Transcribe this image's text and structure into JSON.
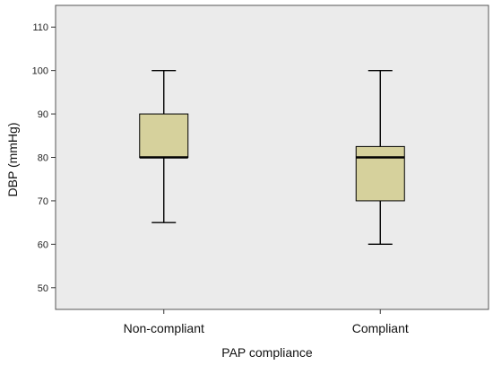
{
  "chart_data": {
    "type": "boxplot",
    "title": "",
    "xlabel": "PAP compliance",
    "ylabel": "DBP (mmHg)",
    "ylim": [
      45,
      115
    ],
    "yticks": [
      50,
      60,
      70,
      80,
      90,
      100,
      110
    ],
    "grid": false,
    "categories": [
      "Non-compliant",
      "Compliant"
    ],
    "boxes": [
      {
        "category": "Non-compliant",
        "min": 65,
        "q1": 80,
        "median": 80,
        "q3": 90,
        "max": 100
      },
      {
        "category": "Compliant",
        "min": 60,
        "q1": 70,
        "median": 80,
        "q3": 82.5,
        "max": 100
      }
    ],
    "colors": {
      "plot_background": "#ebebeb",
      "box_fill": "#d6d19c",
      "stroke": "#000000"
    }
  }
}
